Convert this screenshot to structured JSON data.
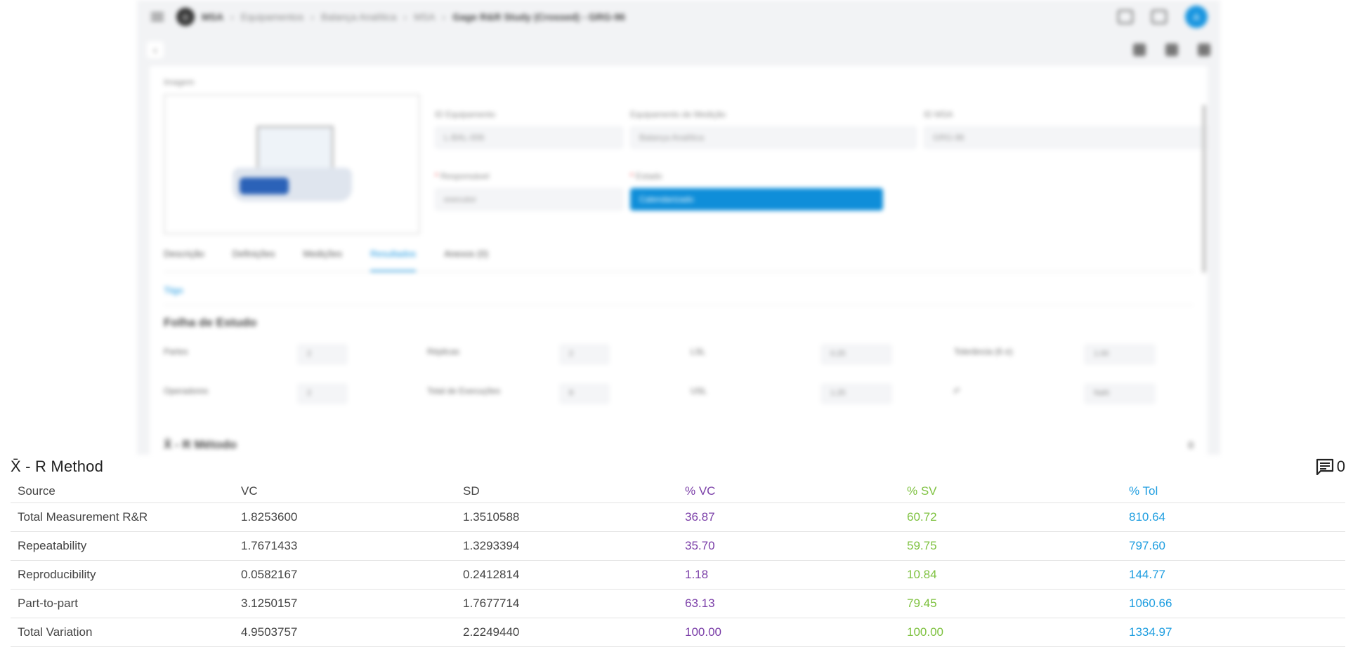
{
  "background": {
    "breadcrumb": [
      "MSA",
      "Equipamentos",
      "Balança Analítica",
      "MSA",
      "Gage R&R Study (Crossed) - GRG-96"
    ],
    "avatar_initial": "A",
    "image_label": "Imagem",
    "fields": {
      "equipment_id": {
        "label": "ID Equipamento",
        "value": "L-BAL-006"
      },
      "measuring_equipment": {
        "label": "Equipamento de Medição",
        "value": "Balança Analítica"
      },
      "msa_id": {
        "label": "ID MSA",
        "value": "GRG-96"
      },
      "responsible": {
        "label": "Responsável",
        "value": "executor"
      },
      "state": {
        "label": "Estado",
        "value": "Calendarizado"
      }
    },
    "tabs": [
      "Descrição",
      "Definições",
      "Medições",
      "Resultados",
      "Anexos (0)"
    ],
    "active_tab": "Resultados",
    "subtab": "Tiigo",
    "sheet_title": "Folha de Estudo",
    "sheet": {
      "parts": {
        "label": "Partes",
        "value": "2"
      },
      "replicas": {
        "label": "Réplicas",
        "value": "2"
      },
      "lsl": {
        "label": "LSL",
        "value": "0.25"
      },
      "tolerance": {
        "label": "Tolerância (6 σ)",
        "value": "1.00"
      },
      "operators": {
        "label": "Operadores",
        "value": "2"
      },
      "total_runs": {
        "label": "Total de Execuções",
        "value": "8"
      },
      "usl": {
        "label": "USL",
        "value": "1.25"
      },
      "r": {
        "label": "r²",
        "value": "NaN"
      }
    },
    "section_title_blur": "X̄ - R Método",
    "section_count_blur": "0"
  },
  "results": {
    "title": "X̄ - R Method",
    "comment_count": "0",
    "headers": {
      "source": "Source",
      "vc": "VC",
      "sd": "SD",
      "pvc": "% VC",
      "psv": "% SV",
      "ptol": "% Tol"
    },
    "rows": [
      {
        "source": "Total Measurement R&R",
        "vc": "1.8253600",
        "sd": "1.3510588",
        "pvc": "36.87",
        "psv": "60.72",
        "ptol": "810.64"
      },
      {
        "source": "Repeatability",
        "vc": "1.7671433",
        "sd": "1.3293394",
        "pvc": "35.70",
        "psv": "59.75",
        "ptol": "797.60"
      },
      {
        "source": "Reproducibility",
        "vc": "0.0582167",
        "sd": "0.2412814",
        "pvc": "1.18",
        "psv": "10.84",
        "ptol": "144.77"
      },
      {
        "source": "Part-to-part",
        "vc": "3.1250157",
        "sd": "1.7677714",
        "pvc": "63.13",
        "psv": "79.45",
        "ptol": "1060.66"
      },
      {
        "source": "Total Variation",
        "vc": "4.9503757",
        "sd": "2.2249440",
        "pvc": "100.00",
        "psv": "100.00",
        "ptol": "1334.97"
      }
    ]
  },
  "colors": {
    "pvc": "#7b3fa8",
    "psv": "#7fc241",
    "ptol": "#1f9ee0",
    "accent": "#1996e0"
  }
}
